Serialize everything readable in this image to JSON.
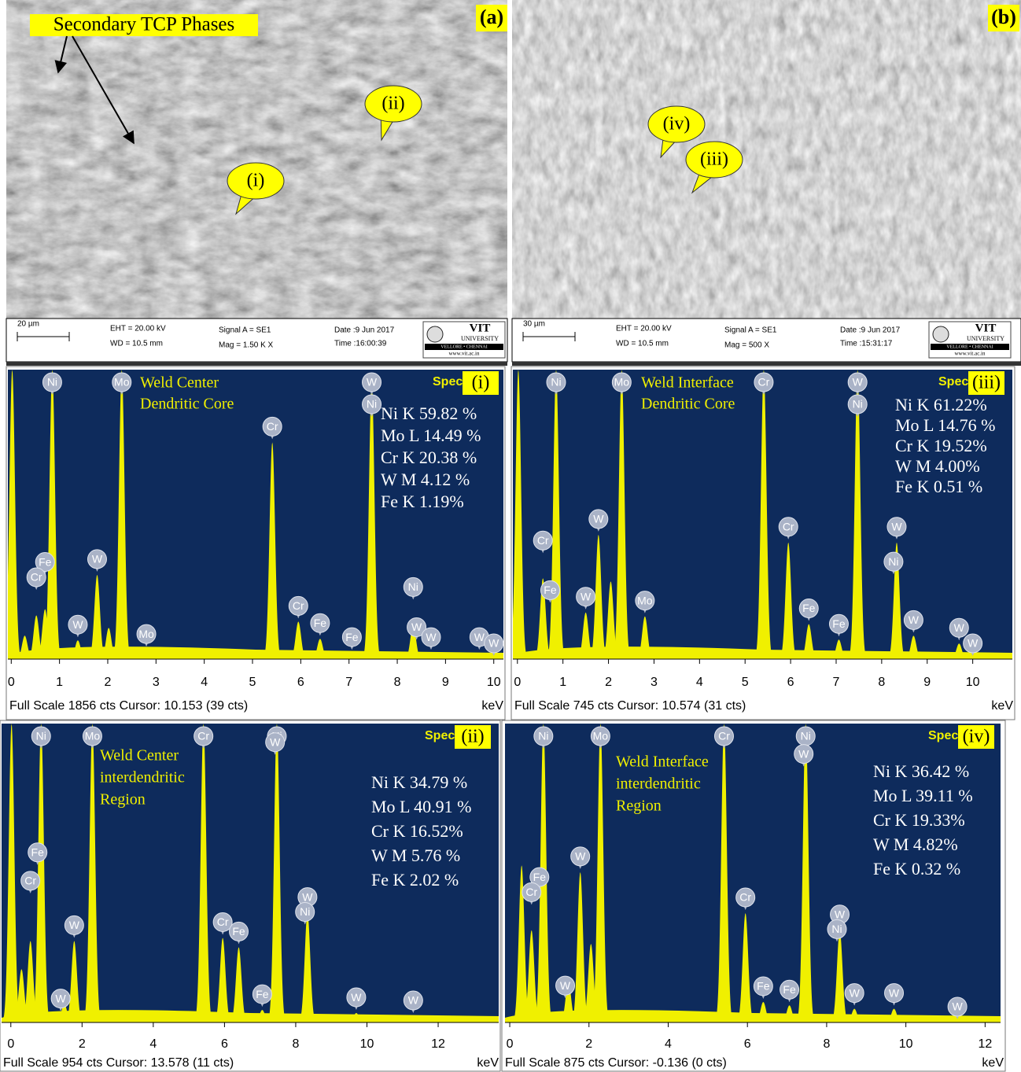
{
  "images": [
    {
      "label": "(a)",
      "annotation": "Secondary TCP Phases",
      "callouts": [
        "(i)",
        "(ii)"
      ],
      "info": [
        "20 µm",
        "EHT = 20.00 kV",
        "WD = 10.5 mm",
        "Signal A = SE1",
        "Mag =    1.50 K X",
        "Date :9 Jun 2017",
        "Time :16:00:39"
      ],
      "logo": [
        "VIT",
        "UNIVERSITY",
        "VELLORE • CHENNAI",
        "www.vit.ac.in"
      ]
    },
    {
      "label": "(b)",
      "callouts": [
        "(iii)",
        "(iv)"
      ],
      "info": [
        "30 µm",
        "EHT = 20.00 kV",
        "WD = 10.5 mm",
        "Signal A = SE1",
        "Mag =    500 X",
        "Date :9 Jun 2017",
        "Time :15:31:17"
      ],
      "logo": [
        "VIT",
        "UNIVERSITY",
        "VELLORE • CHENNAI",
        "www.vit.ac.in"
      ]
    }
  ],
  "chart_data": [
    {
      "type": "area",
      "panel_label": "(i)",
      "spectrum_label": "Spec",
      "title": [
        "Weld Center",
        "Dendritic Core"
      ],
      "composition": [
        "Ni K  59.82 %",
        "Mo L 14.49 %",
        "Cr K 20.38 %",
        "W M 4.12 %",
        "Fe K 1.19%"
      ],
      "footer": "Full Scale 1856 cts Cursor: 10.153  (39 cts)",
      "xlabel": "keV",
      "xlim": [
        -0.07,
        10.2
      ],
      "xticks": [
        0,
        1,
        2,
        3,
        4,
        5,
        6,
        7,
        8,
        9,
        10
      ],
      "ylim": [
        0,
        1856
      ],
      "x": [
        0.02,
        0.28,
        0.52,
        0.7,
        0.85,
        1.38,
        1.78,
        2.02,
        2.29,
        2.8,
        5.41,
        5.95,
        6.4,
        7.06,
        7.47,
        8.33,
        8.7,
        9.7
      ],
      "values": [
        1856,
        150,
        280,
        320,
        1856,
        120,
        540,
        200,
        1856,
        60,
        1390,
        240,
        130,
        40,
        1780,
        220,
        40,
        40
      ],
      "color": "#f0f000",
      "background": "#0e2b5c",
      "markers": [
        {
          "label": "Ni",
          "x": 0.85
        },
        {
          "label": "Fe",
          "x": 0.7
        },
        {
          "label": "Cr",
          "x": 0.52
        },
        {
          "label": "W",
          "x": 1.38
        },
        {
          "label": "W",
          "x": 1.78
        },
        {
          "label": "Mo",
          "x": 2.29
        },
        {
          "label": "Mo",
          "x": 2.8
        },
        {
          "label": "Cr",
          "x": 5.41
        },
        {
          "label": "Cr",
          "x": 5.95
        },
        {
          "label": "Fe",
          "x": 6.4
        },
        {
          "label": "Fe",
          "x": 7.06
        },
        {
          "label": "W",
          "x": 7.47
        },
        {
          "label": "Ni",
          "x": 7.47
        },
        {
          "label": "W",
          "x": 8.4
        },
        {
          "label": "Ni",
          "x": 8.33
        },
        {
          "label": "W",
          "x": 8.7
        },
        {
          "label": "W",
          "x": 9.7
        },
        {
          "label": "W",
          "x": 10.0
        }
      ]
    },
    {
      "type": "area",
      "panel_label": "(iii)",
      "spectrum_label": "Spec",
      "title": [
        "Weld Interface",
        "Dendritic Core"
      ],
      "composition": [
        "Ni K  61.22%",
        "Mo L 14.76 %",
        "Cr K 19.52%",
        "W M 4.00%",
        "Fe K 0.51 %"
      ],
      "footer": "Full Scale 745 cts Cursor: 10.574  (31 cts)",
      "xlabel": "keV",
      "xlim": [
        -0.1,
        10.87
      ],
      "xticks": [
        0,
        1,
        2,
        3,
        4,
        5,
        6,
        7,
        8,
        9,
        10
      ],
      "ylim": [
        0,
        745
      ],
      "x": [
        0.02,
        0.56,
        0.85,
        1.5,
        1.78,
        2.05,
        2.29,
        2.8,
        5.41,
        5.95,
        6.4,
        7.06,
        7.47,
        8.33,
        8.7,
        9.7
      ],
      "values": [
        745,
        208,
        745,
        120,
        320,
        200,
        745,
        110,
        745,
        300,
        90,
        50,
        745,
        300,
        60,
        40
      ],
      "color": "#f0f000",
      "background": "#0e2b5c",
      "markers": [
        {
          "label": "Ni",
          "x": 0.85
        },
        {
          "label": "Fe",
          "x": 0.72
        },
        {
          "label": "Cr",
          "x": 0.56
        },
        {
          "label": "W",
          "x": 1.5
        },
        {
          "label": "W",
          "x": 1.78
        },
        {
          "label": "Mo",
          "x": 2.29
        },
        {
          "label": "Mo",
          "x": 2.8
        },
        {
          "label": "Cr",
          "x": 5.41
        },
        {
          "label": "Cr",
          "x": 5.95
        },
        {
          "label": "Fe",
          "x": 6.4
        },
        {
          "label": "Fe",
          "x": 7.06
        },
        {
          "label": "W",
          "x": 7.47
        },
        {
          "label": "Ni",
          "x": 7.47
        },
        {
          "label": "W",
          "x": 8.33
        },
        {
          "label": "Ni",
          "x": 8.26
        },
        {
          "label": "W",
          "x": 8.7
        },
        {
          "label": "W",
          "x": 9.7
        },
        {
          "label": "W",
          "x": 10.0
        }
      ]
    },
    {
      "type": "area",
      "panel_label": "(ii)",
      "spectrum_label": "Spec",
      "title": [
        "Weld Center",
        "interdendritic",
        "Region"
      ],
      "composition": [
        "Ni K  34.79 %",
        "Mo L 40.91 %",
        "Cr K 16.52%",
        "W M 5.76 %",
        "Fe K 2.02 %"
      ],
      "footer": "Full Scale 954 cts Cursor: 13.578  (11 cts)",
      "xlabel": "keV",
      "xlim": [
        -0.26,
        13.7
      ],
      "xticks": [
        0,
        2,
        4,
        6,
        8,
        10,
        12
      ],
      "ylim": [
        0,
        954
      ],
      "x": [
        0.02,
        0.3,
        0.55,
        0.85,
        1.5,
        1.78,
        2.29,
        5.41,
        5.95,
        6.4,
        7.06,
        7.47,
        8.33,
        9.7,
        11.3
      ],
      "values": [
        954,
        170,
        260,
        954,
        60,
        260,
        954,
        954,
        270,
        240,
        40,
        954,
        350,
        30,
        20
      ],
      "color": "#f0f000",
      "background": "#0e2b5c",
      "markers": [
        {
          "label": "Ni",
          "x": 0.85
        },
        {
          "label": "Fe",
          "x": 0.75
        },
        {
          "label": "Cr",
          "x": 0.55
        },
        {
          "label": "W",
          "x": 1.4
        },
        {
          "label": "W",
          "x": 1.78
        },
        {
          "label": "Mo",
          "x": 2.29
        },
        {
          "label": "Cr",
          "x": 5.41
        },
        {
          "label": "Cr",
          "x": 5.95
        },
        {
          "label": "Fe",
          "x": 6.4
        },
        {
          "label": "Fe",
          "x": 7.06
        },
        {
          "label": "Ni",
          "x": 7.47
        },
        {
          "label": "W",
          "x": 7.42
        },
        {
          "label": "W",
          "x": 8.33
        },
        {
          "label": "Ni",
          "x": 8.26
        },
        {
          "label": "W",
          "x": 9.7
        },
        {
          "label": "W",
          "x": 11.3
        }
      ]
    },
    {
      "type": "area",
      "panel_label": "(iv)",
      "spectrum_label": "Spec",
      "title": [
        "Weld Interface",
        "interdendritic",
        "Region"
      ],
      "composition": [
        "Ni K  36.42 %",
        "Mo L 39.11 %",
        "Cr K 19.33%",
        "W M 4.82%",
        "Fe K 0.32 %"
      ],
      "footer": "Full Scale 875 cts Cursor: -0.136  (0 cts)",
      "xlabel": "keV",
      "xlim": [
        -0.12,
        12.39
      ],
      "xticks": [
        0,
        2,
        4,
        6,
        8,
        10,
        12
      ],
      "ylim": [
        0,
        875
      ],
      "x": [
        0.3,
        0.55,
        0.85,
        1.48,
        1.78,
        2.05,
        2.29,
        5.41,
        5.95,
        6.4,
        7.06,
        7.47,
        8.33,
        8.7,
        9.7
      ],
      "values": [
        460,
        270,
        875,
        120,
        440,
        230,
        875,
        875,
        320,
        60,
        50,
        875,
        270,
        40,
        40
      ],
      "color": "#f0f000",
      "background": "#0e2b5c",
      "markers": [
        {
          "label": "Ni",
          "x": 0.85
        },
        {
          "label": "Fe",
          "x": 0.75
        },
        {
          "label": "Cr",
          "x": 0.55
        },
        {
          "label": "W",
          "x": 1.4
        },
        {
          "label": "W",
          "x": 1.78
        },
        {
          "label": "Mo",
          "x": 2.29
        },
        {
          "label": "Cr",
          "x": 5.41
        },
        {
          "label": "Cr",
          "x": 5.95
        },
        {
          "label": "Fe",
          "x": 6.4
        },
        {
          "label": "Fe",
          "x": 7.06
        },
        {
          "label": "Ni",
          "x": 7.47
        },
        {
          "label": "W",
          "x": 7.42
        },
        {
          "label": "W",
          "x": 8.33
        },
        {
          "label": "Ni",
          "x": 8.26
        },
        {
          "label": "W",
          "x": 8.7
        },
        {
          "label": "W",
          "x": 9.7
        },
        {
          "label": "W",
          "x": 11.3
        }
      ]
    }
  ]
}
